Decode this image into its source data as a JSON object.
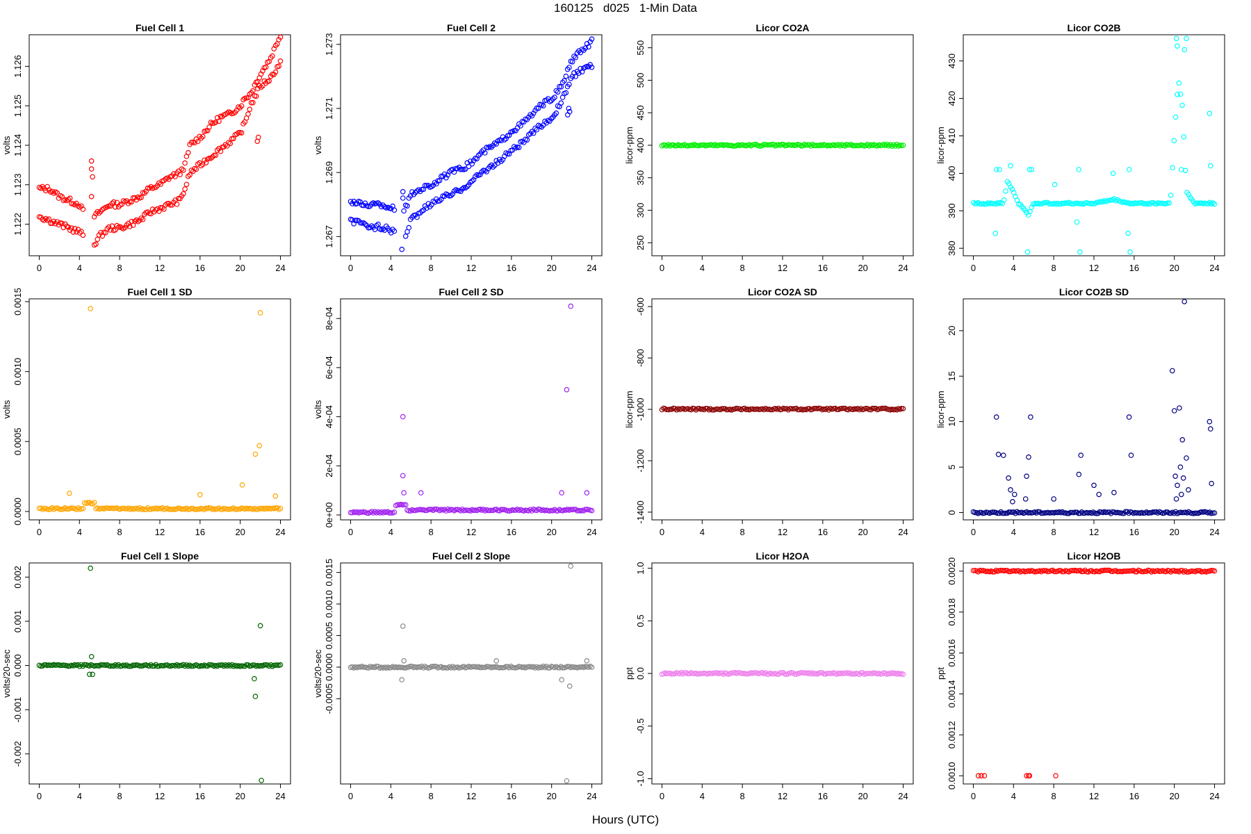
{
  "figure": {
    "title": "160125   d025   1-Min Data",
    "xlabel": "Hours (UTC)"
  },
  "chart_data": [
    {
      "type": "scatter",
      "title": "Fuel Cell 1",
      "ylabel": "volts",
      "color": "#ff0000",
      "xlim": [
        -1,
        25
      ],
      "ylim": [
        1.1212,
        1.1268
      ],
      "xticks": [
        "0",
        "4",
        "8",
        "12",
        "16",
        "20",
        "24"
      ],
      "yticks": [
        "1.122",
        "1.123",
        "1.124",
        "1.125",
        "1.126"
      ],
      "series": [
        {
          "name": "upper",
          "x": [
            0,
            1,
            2,
            3,
            4,
            4.4,
            5.5,
            6,
            7,
            8,
            9,
            10,
            11,
            12,
            13,
            14,
            14.5,
            15,
            16,
            17,
            18,
            19,
            20,
            20.5,
            21,
            22,
            23,
            24
          ],
          "y": [
            1.1229,
            1.1229,
            1.1227,
            1.1226,
            1.1225,
            1.1223,
            1.1222,
            1.1223,
            1.1225,
            1.1225,
            1.1226,
            1.1227,
            1.1229,
            1.123,
            1.1232,
            1.1233,
            1.1235,
            1.124,
            1.1242,
            1.1245,
            1.1247,
            1.1248,
            1.125,
            1.1252,
            1.1253,
            1.1258,
            1.1262,
            1.1268
          ]
        },
        {
          "name": "lower",
          "x": [
            0,
            1,
            2,
            3,
            4,
            4.4,
            5.5,
            6,
            7,
            8,
            9,
            10,
            11,
            12,
            13,
            14,
            14.5,
            15,
            16,
            17,
            18,
            19,
            20,
            20.5,
            21,
            22,
            23,
            24
          ],
          "y": [
            1.1222,
            1.1221,
            1.122,
            1.1219,
            1.1218,
            1.1217,
            1.1215,
            1.1217,
            1.1219,
            1.1219,
            1.122,
            1.1221,
            1.1223,
            1.1224,
            1.1225,
            1.1226,
            1.1229,
            1.1233,
            1.1235,
            1.1237,
            1.1239,
            1.1241,
            1.1243,
            1.1246,
            1.125,
            1.1255,
            1.1257,
            1.1261
          ]
        }
      ],
      "outliers": {
        "x": [
          5.2,
          5.2,
          5.3,
          5.2,
          21.8,
          21.7
        ],
        "y": [
          1.1236,
          1.1234,
          1.1232,
          1.1227,
          1.1242,
          1.1241
        ]
      }
    },
    {
      "type": "scatter",
      "title": "Fuel Cell 2",
      "ylabel": "volts",
      "color": "#0000ff",
      "xlim": [
        -1,
        25
      ],
      "ylim": [
        1.2664,
        1.2733
      ],
      "xticks": [
        "0",
        "4",
        "8",
        "12",
        "16",
        "20",
        "24"
      ],
      "yticks": [
        "1.267",
        "1.269",
        "1.271",
        "1.273"
      ],
      "series": [
        {
          "name": "upper",
          "x": [
            0,
            1,
            2,
            3,
            4,
            4.4,
            5.5,
            6,
            7,
            8,
            9,
            10,
            11,
            12,
            13,
            14,
            15,
            16,
            17,
            18,
            19,
            20,
            21,
            22,
            23,
            24
          ],
          "y": [
            1.2681,
            1.268,
            1.268,
            1.268,
            1.2679,
            1.2679,
            1.2679,
            1.2683,
            1.2685,
            1.2686,
            1.2688,
            1.269,
            1.2691,
            1.2693,
            1.2696,
            1.2698,
            1.27,
            1.2703,
            1.2705,
            1.2708,
            1.2711,
            1.2713,
            1.2717,
            1.2725,
            1.2728,
            1.2731
          ]
        },
        {
          "name": "lower",
          "x": [
            0,
            1,
            2,
            3,
            4,
            4.4,
            5.5,
            6,
            7,
            8,
            9,
            10,
            11,
            12,
            13,
            14,
            15,
            16,
            17,
            18,
            19,
            20,
            21,
            22,
            23,
            24
          ],
          "y": [
            1.2675,
            1.2674,
            1.2673,
            1.2673,
            1.2672,
            1.2672,
            1.267,
            1.2675,
            1.2678,
            1.268,
            1.2682,
            1.2683,
            1.2685,
            1.2687,
            1.269,
            1.2692,
            1.2694,
            1.2697,
            1.2699,
            1.2702,
            1.2705,
            1.2707,
            1.2712,
            1.272,
            1.2722,
            1.2723
          ]
        }
      ],
      "outliers": {
        "x": [
          5.2,
          5.2,
          5.3,
          5.1,
          21.8,
          21.6,
          21.7
        ],
        "y": [
          1.2684,
          1.2682,
          1.2678,
          1.2666,
          1.2709,
          1.2708,
          1.271
        ]
      }
    },
    {
      "type": "scatter",
      "title": "Licor CO2A",
      "ylabel": "licor-ppm",
      "color": "#00ee00",
      "xlim": [
        -1,
        25
      ],
      "ylim": [
        230,
        570
      ],
      "xticks": [
        "0",
        "4",
        "8",
        "12",
        "16",
        "20",
        "24"
      ],
      "yticks": [
        "250",
        "300",
        "350",
        "400",
        "450",
        "500",
        "550"
      ],
      "series": [
        {
          "name": "CO2A",
          "x": [
            0,
            24
          ],
          "y": [
            400,
            400
          ]
        }
      ]
    },
    {
      "type": "scatter",
      "title": "Licor CO2B",
      "ylabel": "licor-ppm",
      "color": "#00ffff",
      "xlim": [
        -1,
        25
      ],
      "ylim": [
        378,
        437
      ],
      "xticks": [
        "0",
        "4",
        "8",
        "12",
        "16",
        "20",
        "24"
      ],
      "yticks": [
        "380",
        "390",
        "400",
        "410",
        "420",
        "430"
      ],
      "series": [
        {
          "name": "CO2B",
          "x": [
            0,
            3,
            3.4,
            3.8,
            4.5,
            5.5,
            6,
            8,
            10,
            12,
            14,
            15.5,
            16,
            18,
            19.6,
            20,
            20.4,
            20.8,
            21.2,
            22,
            24
          ],
          "y": [
            392,
            392,
            398,
            396,
            392,
            389,
            392,
            392,
            392,
            392,
            393,
            392,
            392,
            392,
            392,
            410,
            425,
            418,
            395,
            392,
            392
          ]
        }
      ],
      "outliers": {
        "x": [
          2.3,
          2.6,
          3.7,
          5.6,
          5.8,
          5.4,
          8.1,
          10.5,
          10.6,
          15.5,
          15.6,
          20.2,
          20.3,
          20.7,
          21,
          21.2,
          23.5,
          23.6,
          2.2,
          10.3,
          13.9,
          15.4,
          22.6
        ],
        "y": [
          401,
          401,
          402,
          401,
          401,
          379,
          397,
          401,
          379,
          401,
          379,
          436,
          434,
          401,
          433,
          436,
          416,
          402,
          384,
          387,
          400,
          384,
          392
        ]
      }
    },
    {
      "type": "scatter",
      "title": "Fuel Cell 1 SD",
      "ylabel": "volts",
      "color": "#ffa500",
      "xlim": [
        -1,
        25
      ],
      "ylim": [
        -6e-05,
        0.00152
      ],
      "xticks": [
        "0",
        "4",
        "8",
        "12",
        "16",
        "20",
        "24"
      ],
      "yticks": [
        "0.0000",
        "0.0005",
        "0.0010",
        "0.0015"
      ],
      "series": [
        {
          "name": "SD",
          "x": [
            0,
            4.4,
            4.5,
            5.5,
            5.6,
            24
          ],
          "y": [
            2e-05,
            2e-05,
            6e-05,
            6e-05,
            2e-05,
            2e-05
          ]
        }
      ],
      "outliers": {
        "x": [
          5.1,
          22,
          21.9,
          21.5,
          20.2,
          3,
          16,
          23.5
        ],
        "y": [
          0.00145,
          0.00142,
          0.00047,
          0.00041,
          0.00019,
          0.00013,
          0.00012,
          0.00011
        ]
      }
    },
    {
      "type": "scatter",
      "title": "Fuel Cell 2 SD",
      "ylabel": "volts",
      "color": "#a020f0",
      "xlim": [
        -1,
        25
      ],
      "ylim": [
        -2e-05,
        0.00088
      ],
      "xticks": [
        "0",
        "4",
        "8",
        "12",
        "16",
        "20",
        "24"
      ],
      "yticks": [
        "0e+00",
        "2e-04",
        "4e-04",
        "6e-04",
        "8e-04"
      ],
      "series": [
        {
          "name": "SD",
          "x": [
            0,
            4.4,
            4.5,
            5.5,
            5.6,
            24
          ],
          "y": [
            1e-05,
            1e-05,
            4e-05,
            4e-05,
            2e-05,
            2e-05
          ]
        }
      ],
      "outliers": {
        "x": [
          21.9,
          21.5,
          5.2,
          5.2,
          5.3,
          7,
          21,
          23.5
        ],
        "y": [
          0.00085,
          0.00051,
          0.0004,
          0.00016,
          9e-05,
          9e-05,
          9e-05,
          9e-05
        ]
      }
    },
    {
      "type": "scatter",
      "title": "Licor CO2A SD",
      "ylabel": "licor-ppm",
      "color": "#8b0000",
      "xlim": [
        -1,
        25
      ],
      "ylim": [
        -1430,
        -570
      ],
      "xticks": [
        "0",
        "4",
        "8",
        "12",
        "16",
        "20",
        "24"
      ],
      "yticks": [
        "-1400",
        "-1200",
        "-1000",
        "-800",
        "-600"
      ],
      "series": [
        {
          "name": "SD",
          "x": [
            0,
            24
          ],
          "y": [
            -999,
            -999
          ]
        }
      ]
    },
    {
      "type": "scatter",
      "title": "Licor CO2B SD",
      "ylabel": "licor-ppm",
      "color": "#000080",
      "xlim": [
        -1,
        25
      ],
      "ylim": [
        -0.8,
        23.5
      ],
      "xticks": [
        "0",
        "4",
        "8",
        "12",
        "16",
        "20",
        "24"
      ],
      "yticks": [
        "0",
        "5",
        "10",
        "15",
        "20"
      ],
      "series": [
        {
          "name": "SD",
          "x": [
            0,
            24
          ],
          "y": [
            0,
            0
          ]
        }
      ],
      "outliers": {
        "x": [
          2.3,
          2.5,
          3.5,
          3.7,
          3.9,
          4.1,
          5.3,
          5.5,
          5.7,
          5.2,
          8,
          10.5,
          10.7,
          12,
          12.5,
          14,
          15.5,
          15.7,
          19.8,
          20,
          20.1,
          20.3,
          20.5,
          20.7,
          20.8,
          21,
          21.2,
          20.9,
          23.5,
          23.6,
          23.7,
          3,
          20.2,
          20.6,
          21.4
        ],
        "y": [
          10.5,
          6.4,
          3.8,
          2.5,
          1.2,
          2,
          4,
          6.1,
          10.5,
          1.5,
          1.5,
          4.2,
          6.3,
          3,
          2,
          2.2,
          10.5,
          6.3,
          15.6,
          11.2,
          4,
          3,
          11.5,
          2,
          8,
          23.2,
          6,
          3.8,
          10,
          9.2,
          3.2,
          6.3,
          1.5,
          5,
          2.5
        ]
      }
    },
    {
      "type": "scatter",
      "title": "Fuel Cell 1 Slope",
      "ylabel": "volts/20-sec",
      "color": "#006400",
      "xlim": [
        -1,
        25
      ],
      "ylim": [
        -0.00268,
        0.00232
      ],
      "xticks": [
        "0",
        "4",
        "8",
        "12",
        "16",
        "20",
        "24"
      ],
      "yticks": [
        "-0.002",
        "-0.001",
        "0.000",
        "0.001",
        "0.002"
      ],
      "series": [
        {
          "name": "slope",
          "x": [
            0,
            24
          ],
          "y": [
            0,
            0
          ]
        }
      ],
      "outliers": {
        "x": [
          5.1,
          5.2,
          5.0,
          5.3,
          22,
          21.5,
          22.1,
          21.4
        ],
        "y": [
          0.0022,
          0.0002,
          -0.0002,
          -0.0002,
          0.0009,
          -0.0007,
          -0.0026,
          -0.0003
        ]
      }
    },
    {
      "type": "scatter",
      "title": "Fuel Cell 2 Slope",
      "ylabel": "volts/20-sec",
      "color": "#888888",
      "xlim": [
        -1,
        25
      ],
      "ylim": [
        -0.00185,
        0.00165
      ],
      "xticks": [
        "0",
        "4",
        "8",
        "12",
        "16",
        "20",
        "24"
      ],
      "yticks": [
        "-0.0005",
        "0.0000",
        "0.0005",
        "0.0010",
        "0.0015"
      ],
      "series": [
        {
          "name": "slope",
          "x": [
            0,
            24
          ],
          "y": [
            0,
            0
          ]
        }
      ],
      "outliers": {
        "x": [
          21.9,
          5.2,
          21.5,
          5.1,
          5.3,
          14.5,
          21,
          23.5,
          21.8
        ],
        "y": [
          0.0016,
          0.00065,
          -0.0018,
          -0.0002,
          0.0001,
          0.0001,
          -0.0002,
          0.0001,
          -0.0003
        ]
      }
    },
    {
      "type": "scatter",
      "title": "Licor H2OA",
      "ylabel": "ppt",
      "color": "#ee82ee",
      "xlim": [
        -1,
        25
      ],
      "ylim": [
        -1.05,
        1.05
      ],
      "xticks": [
        "0",
        "4",
        "8",
        "12",
        "16",
        "20",
        "24"
      ],
      "yticks": [
        "-1.0",
        "-0.5",
        "0.0",
        "0.5",
        "1.0"
      ],
      "series": [
        {
          "name": "H2OA",
          "x": [
            0,
            24
          ],
          "y": [
            0,
            0
          ]
        }
      ]
    },
    {
      "type": "scatter",
      "title": "Licor H2OB",
      "ylabel": "ppt",
      "color": "#ff0000",
      "xlim": [
        -1,
        25
      ],
      "ylim": [
        0.00096,
        0.00204
      ],
      "xticks": [
        "0",
        "4",
        "8",
        "12",
        "16",
        "20",
        "24"
      ],
      "yticks": [
        "0.0010",
        "0.0012",
        "0.0014",
        "0.0016",
        "0.0018",
        "0.0020"
      ],
      "series": [
        {
          "name": "H2OB",
          "x": [
            0,
            24
          ],
          "y": [
            0.002,
            0.002
          ]
        }
      ],
      "outliers": {
        "x": [
          0.5,
          0.8,
          1.1,
          5.3,
          5.5,
          5.6,
          8.2
        ],
        "y": [
          0.001,
          0.001,
          0.001,
          0.001,
          0.001,
          0.001,
          0.001
        ]
      }
    }
  ]
}
